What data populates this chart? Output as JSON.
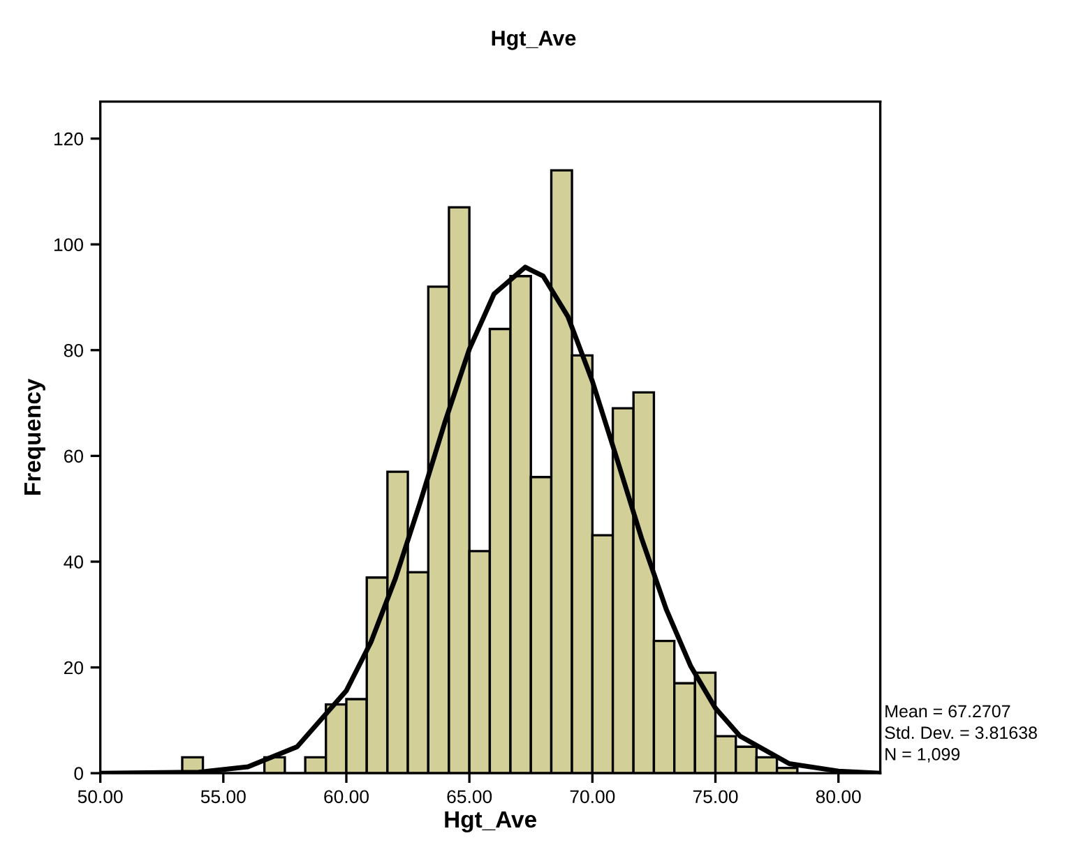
{
  "chart_data": {
    "type": "histogram",
    "title": "Hgt_Ave",
    "xlabel": "Hgt_Ave",
    "ylabel": "Frequency",
    "bins": [
      53.33,
      54.17,
      55.0,
      55.83,
      56.67,
      57.5,
      58.33,
      59.17,
      60.0,
      60.83,
      61.67,
      62.5,
      63.33,
      64.17,
      65.0,
      65.83,
      66.67,
      67.5,
      68.33,
      69.17,
      70.0,
      70.83,
      71.67,
      72.5,
      73.33,
      74.17,
      75.0,
      75.83,
      76.67,
      77.5,
      78.33
    ],
    "values": [
      3,
      0,
      0,
      0,
      3,
      0,
      3,
      13,
      14,
      37,
      57,
      38,
      92,
      107,
      42,
      84,
      94,
      56,
      114,
      79,
      45,
      69,
      72,
      25,
      17,
      19,
      7,
      5,
      3,
      1
    ],
    "color": "#d3cf98",
    "series": [
      {
        "type": "line",
        "color": "#000000",
        "x": [
          50,
          54,
          56,
          58,
          60,
          61,
          62,
          63,
          64,
          65,
          66,
          67.27,
          68,
          69,
          70,
          71,
          72,
          73,
          74,
          75,
          76,
          78,
          80,
          81.7
        ],
        "values": [
          0,
          0.2,
          1.2,
          5.0,
          15.6,
          24.8,
          36.9,
          51.2,
          66.3,
          80.2,
          90.6,
          95.7,
          94.0,
          86.4,
          74.1,
          59.4,
          44.4,
          31.0,
          20.2,
          12.3,
          7.0,
          1.8,
          0.4,
          0
        ]
      }
    ],
    "xlim": [
      50,
      81.7
    ],
    "ylim": [
      0,
      127
    ],
    "xticks": [
      {
        "value": 50,
        "label": "50.00"
      },
      {
        "value": 55,
        "label": "55.00"
      },
      {
        "value": 60,
        "label": "60.00"
      },
      {
        "value": 65,
        "label": "65.00"
      },
      {
        "value": 70,
        "label": "70.00"
      },
      {
        "value": 75,
        "label": "75.00"
      },
      {
        "value": 80,
        "label": "80.00"
      }
    ],
    "yticks": [
      0,
      20,
      40,
      60,
      80,
      100,
      120
    ],
    "annotations": [
      "Mean = 67.2707",
      "Std. Dev. = 3.81638",
      "N = 1,099"
    ]
  }
}
